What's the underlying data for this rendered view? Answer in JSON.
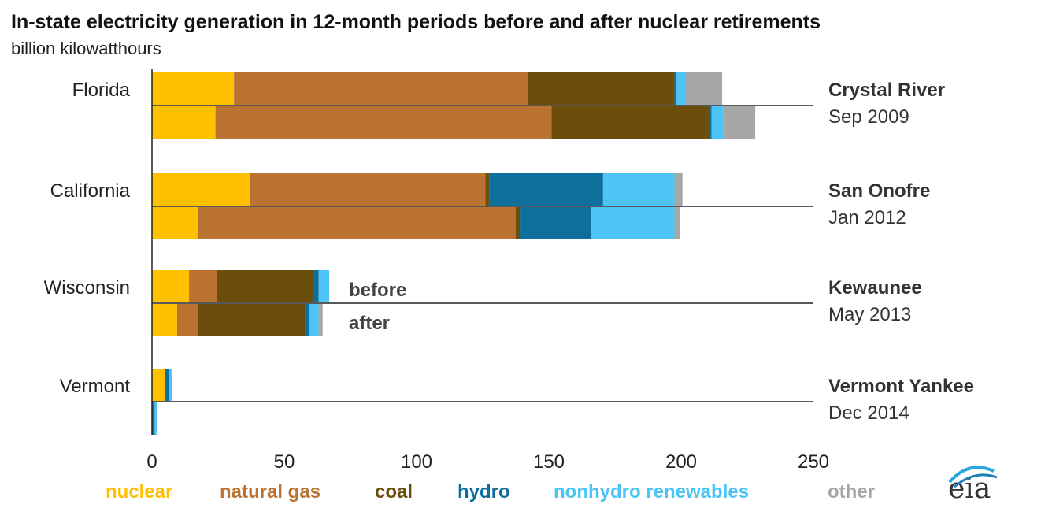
{
  "chart_data": {
    "type": "bar",
    "orientation": "horizontal",
    "stacked": true,
    "title": "In-state electricity generation in 12-month periods before and after nuclear retirements",
    "subtitle": "billion kilowatthours",
    "xlim": [
      0,
      250
    ],
    "x_ticks": [
      0,
      50,
      100,
      150,
      200,
      250
    ],
    "grid": false,
    "legend_position": "bottom",
    "period_labels": {
      "before": "before",
      "after": "after"
    },
    "series": [
      {
        "name": "nuclear",
        "color": "#FFC000"
      },
      {
        "name": "natural gas",
        "color": "#BA7331"
      },
      {
        "name": "coal",
        "color": "#6B4E0C"
      },
      {
        "name": "hydro",
        "color": "#0E6E9C"
      },
      {
        "name": "nonhydro renewables",
        "color": "#4CC4F5"
      },
      {
        "name": "other",
        "color": "#A6A6A6"
      }
    ],
    "groups": [
      {
        "state": "Florida",
        "plant": "Crystal River",
        "date": "Sep 2009",
        "before": [
          31,
          111,
          55.5,
          0.5,
          3.5,
          14
        ],
        "after": [
          24,
          127,
          60,
          0.5,
          4.5,
          12
        ]
      },
      {
        "state": "California",
        "plant": "San Onofre",
        "date": "Jan 2012",
        "before": [
          37,
          89,
          1.5,
          43,
          27,
          3
        ],
        "after": [
          17.5,
          120,
          1.5,
          27,
          31.5,
          2
        ]
      },
      {
        "state": "Wisconsin",
        "plant": "Kewaunee",
        "date": "May 2013",
        "before": [
          14,
          10.5,
          36.5,
          2,
          4,
          0
        ],
        "after": [
          9.5,
          8,
          40.5,
          1.5,
          3.5,
          1.5
        ]
      },
      {
        "state": "Vermont",
        "plant": "Vermont Yankee",
        "date": "Dec 2014",
        "before": [
          5,
          0,
          0,
          1.5,
          1,
          0
        ],
        "after": [
          0,
          0,
          0,
          1,
          1,
          0
        ]
      }
    ]
  },
  "logo": {
    "text": "eia"
  }
}
